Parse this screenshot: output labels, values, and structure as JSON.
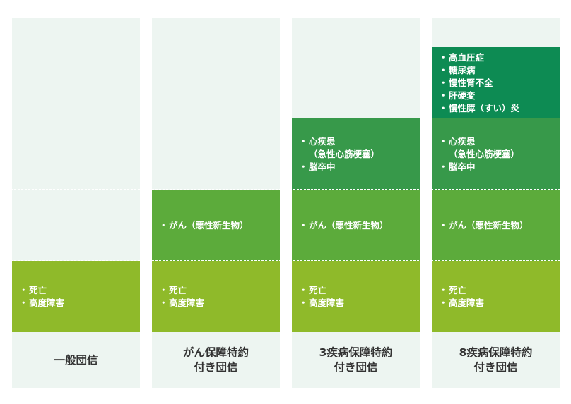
{
  "columns": [
    {
      "label": [
        "一般団信"
      ],
      "blocks": [
        {
          "items": [
            [
              "死亡"
            ],
            [
              "高度障害"
            ]
          ]
        }
      ]
    },
    {
      "label": [
        "がん保障特約",
        "付き団信"
      ],
      "blocks": [
        {
          "items": [
            [
              "死亡"
            ],
            [
              "高度障害"
            ]
          ]
        },
        {
          "items": [
            [
              "がん（悪性新生物）"
            ]
          ]
        }
      ]
    },
    {
      "label": [
        "3疾病保障特約",
        "付き団信"
      ],
      "blocks": [
        {
          "items": [
            [
              "死亡"
            ],
            [
              "高度障害"
            ]
          ]
        },
        {
          "items": [
            [
              "がん（悪性新生物）"
            ]
          ]
        },
        {
          "items": [
            [
              "心疾患",
              "（急性心筋梗塞）"
            ],
            [
              "脳卒中"
            ]
          ]
        }
      ]
    },
    {
      "label": [
        "8疾病保障特約",
        "付き団信"
      ],
      "blocks": [
        {
          "items": [
            [
              "死亡"
            ],
            [
              "高度障害"
            ]
          ]
        },
        {
          "items": [
            [
              "がん（悪性新生物）"
            ]
          ]
        },
        {
          "items": [
            [
              "心疾患",
              "（急性心筋梗塞）"
            ],
            [
              "脳卒中"
            ]
          ]
        },
        {
          "items": [
            [
              "高血圧症"
            ],
            [
              "糖尿病"
            ],
            [
              "慢性腎不全"
            ],
            [
              "肝硬変"
            ],
            [
              "慢性膵（すい）炎"
            ]
          ]
        }
      ]
    }
  ]
}
